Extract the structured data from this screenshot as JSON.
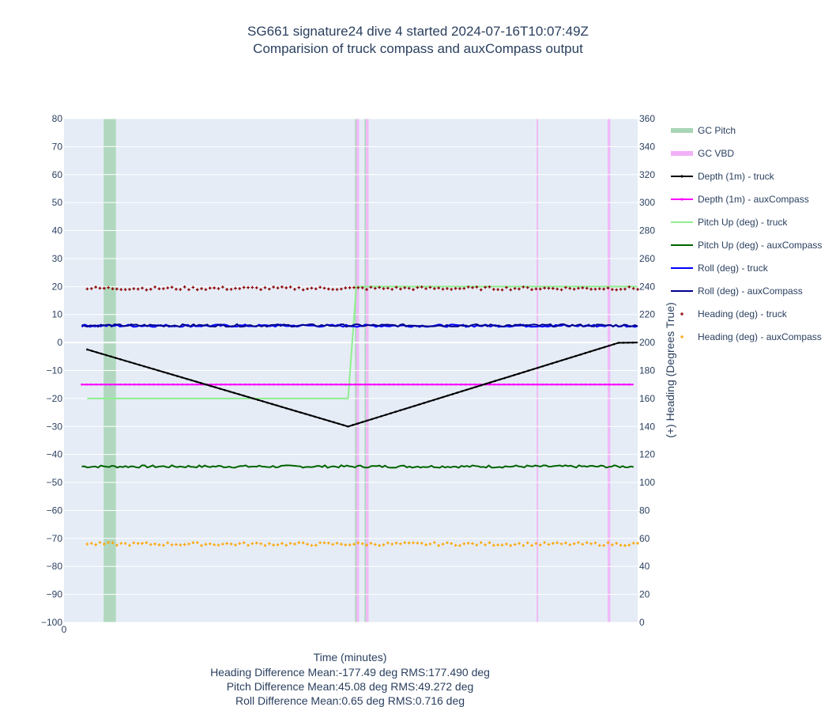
{
  "chart_data": {
    "type": "line",
    "title": "SG661 signature24 dive 4 started 2024-07-16T10:07:49Z",
    "subtitle": "Comparision of truck compass and auxCompass output",
    "xlabel": "Time (minutes)",
    "xlabel_lines": [
      "Heading Difference Mean:-177.49 deg RMS:177.490 deg",
      "Pitch Difference Mean:45.08 deg RMS:49.272 deg",
      "Roll Difference Mean:0.65 deg RMS:0.716 deg"
    ],
    "y2label": "(+) Heading (Degrees True)",
    "xlim": [
      0,
      4.2
    ],
    "ylim": [
      -100,
      80
    ],
    "y2lim": [
      0,
      360
    ],
    "x_ticks": [
      "0"
    ],
    "y_ticks": [
      "80",
      "70",
      "60",
      "50",
      "40",
      "30",
      "20",
      "10",
      "0",
      "−10",
      "−20",
      "−30",
      "−40",
      "−50",
      "−60",
      "−70",
      "−80",
      "−90",
      "−100"
    ],
    "y2_ticks": [
      "360",
      "340",
      "320",
      "300",
      "280",
      "260",
      "240",
      "220",
      "200",
      "180",
      "160",
      "140",
      "120",
      "100",
      "80",
      "60",
      "40",
      "20",
      "0"
    ],
    "legend_placement": "right",
    "grid": true,
    "gc_pitch": {
      "name": "GC Pitch",
      "color": "#a8d5b5",
      "intervals": [
        [
          0.29,
          0.38
        ],
        [
          2.13,
          2.14
        ],
        [
          2.2,
          2.21
        ]
      ]
    },
    "gc_vbd": {
      "name": "GC VBD",
      "color": "#f2b0f7",
      "intervals": [
        [
          2.14,
          2.16
        ],
        [
          2.21,
          2.23
        ],
        [
          3.46,
          3.47
        ],
        [
          3.98,
          4.0
        ]
      ]
    },
    "series": [
      {
        "name": "Depth (1m) - truck",
        "color": "#000000",
        "axis": "y",
        "style": "line-markers",
        "x": [
          0.17,
          2.08,
          4.06,
          4.2
        ],
        "y": [
          -2.5,
          -30,
          -0.1,
          0
        ]
      },
      {
        "name": "Depth (1m) - auxCompass",
        "color": "#ff00ff",
        "axis": "y",
        "style": "line-markers",
        "x": [
          0.13,
          4.17
        ],
        "y": [
          -15,
          -15
        ]
      },
      {
        "name": "Pitch Up (deg) - truck",
        "color": "#90ee90",
        "axis": "y",
        "style": "line",
        "x": [
          0.17,
          2.08,
          2.14,
          4.2
        ],
        "y": [
          -20,
          -20,
          20,
          20
        ]
      },
      {
        "name": "Pitch Up (deg) - auxCompass",
        "color": "#006400",
        "axis": "y",
        "style": "noisy-line",
        "x": [
          0.13,
          4.17
        ],
        "y": [
          -44.3,
          -44.3
        ]
      },
      {
        "name": "Roll (deg) - truck",
        "color": "#0000ff",
        "axis": "y",
        "style": "noisy-line",
        "x": [
          0.13,
          4.2
        ],
        "y": [
          6,
          6
        ]
      },
      {
        "name": "Roll (deg) - auxCompass",
        "color": "#00008b",
        "axis": "y",
        "style": "noisy-line",
        "x": [
          0.13,
          4.2
        ],
        "y": [
          6.1,
          6.1
        ]
      },
      {
        "name": "Heading (deg) - truck",
        "color": "#8b0000",
        "axis": "y2",
        "style": "markers",
        "x": [
          0.17,
          4.2
        ],
        "y": [
          238.7,
          238.7
        ]
      },
      {
        "name": "Heading (deg) - auxCompass",
        "color": "#ffa500",
        "axis": "y2",
        "style": "markers",
        "x": [
          0.17,
          4.2
        ],
        "y": [
          56,
          56
        ]
      }
    ]
  }
}
